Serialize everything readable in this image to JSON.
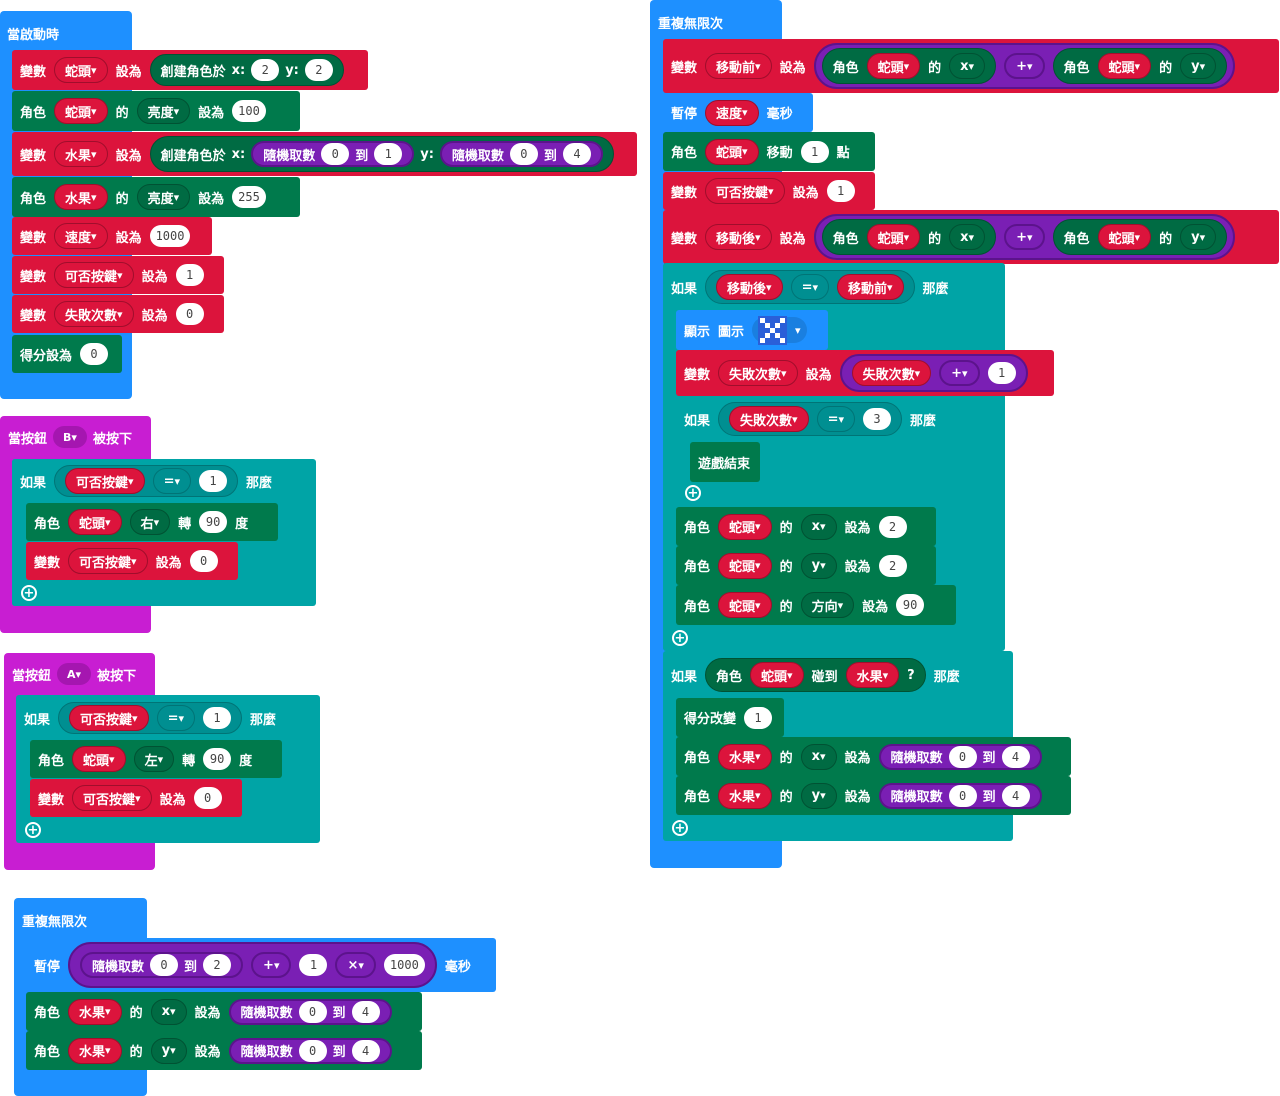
{
  "on_start": {
    "title": "當啟動時",
    "r1": {
      "var": "變數",
      "name": "蛇頭",
      "set": "設為",
      "create": "創建角色於",
      "x_lbl": "x:",
      "x": "2",
      "y_lbl": "y:",
      "y": "2"
    },
    "r2": {
      "sprite": "角色",
      "name": "蛇頭",
      "of": "的",
      "prop": "亮度",
      "set": "設為",
      "val": "100"
    },
    "r3": {
      "var": "變數",
      "name": "水果",
      "set": "設為",
      "create": "創建角色於",
      "x_lbl": "x:",
      "rand1": "隨機取數",
      "a1": "0",
      "to1": "到",
      "b1": "1",
      "y_lbl": "y:",
      "rand2": "隨機取數",
      "a2": "0",
      "to2": "到",
      "b2": "4"
    },
    "r4": {
      "sprite": "角色",
      "name": "水果",
      "of": "的",
      "prop": "亮度",
      "set": "設為",
      "val": "255"
    },
    "r5": {
      "var": "變數",
      "name": "速度",
      "set": "設為",
      "val": "1000"
    },
    "r6": {
      "var": "變數",
      "name": "可否按鍵",
      "set": "設為",
      "val": "1"
    },
    "r7": {
      "var": "變數",
      "name": "失敗次數",
      "set": "設為",
      "val": "0"
    },
    "r8": {
      "label": "得分設為",
      "val": "0"
    }
  },
  "btn_b": {
    "title_pre": "當按鈕",
    "btn": "B",
    "title_post": "被按下",
    "if": "如果",
    "cond_var": "可否按鍵",
    "op": "=",
    "cond_val": "1",
    "then": "那麼",
    "r1": {
      "sprite": "角色",
      "name": "蛇頭",
      "dir": "右",
      "turn": "轉",
      "deg": "90",
      "unit": "度"
    },
    "r2": {
      "var": "變數",
      "name": "可否按鍵",
      "set": "設為",
      "val": "0"
    }
  },
  "btn_a": {
    "title_pre": "當按鈕",
    "btn": "A",
    "title_post": "被按下",
    "if": "如果",
    "cond_var": "可否按鍵",
    "op": "=",
    "cond_val": "1",
    "then": "那麼",
    "r1": {
      "sprite": "角色",
      "name": "蛇頭",
      "dir": "左",
      "turn": "轉",
      "deg": "90",
      "unit": "度"
    },
    "r2": {
      "var": "變數",
      "name": "可否按鍵",
      "set": "設為",
      "val": "0"
    }
  },
  "forever2": {
    "title": "重複無限次",
    "pause": "暫停",
    "rand": "隨機取數",
    "a": "0",
    "to": "到",
    "b": "2",
    "plus": "+",
    "c": "1",
    "mul": "×",
    "d": "1000",
    "ms": "毫秒",
    "r1": {
      "sprite": "角色",
      "name": "水果",
      "of": "的",
      "prop": "x",
      "set": "設為",
      "rand": "隨機取數",
      "a": "0",
      "to": "到",
      "b": "4"
    },
    "r2": {
      "sprite": "角色",
      "name": "水果",
      "of": "的",
      "prop": "y",
      "set": "設為",
      "rand": "隨機取數",
      "a": "0",
      "to": "到",
      "b": "4"
    }
  },
  "forever1": {
    "title": "重複無限次",
    "r1": {
      "var": "變數",
      "name": "移動前",
      "set": "設為",
      "sprite": "角色",
      "s1": "蛇頭",
      "of": "的",
      "p1": "x",
      "plus": "+",
      "s2": "蛇頭",
      "p2": "y"
    },
    "r2": {
      "pause": "暫停",
      "name": "速度",
      "ms": "毫秒"
    },
    "r3": {
      "sprite": "角色",
      "name": "蛇頭",
      "move": "移動",
      "val": "1",
      "unit": "點"
    },
    "r4": {
      "var": "變數",
      "name": "可否按鍵",
      "set": "設為",
      "val": "1"
    },
    "r5": {
      "var": "變數",
      "name": "移動後",
      "set": "設為",
      "sprite": "角色",
      "s1": "蛇頭",
      "of": "的",
      "p1": "x",
      "plus": "+",
      "s2": "蛇頭",
      "p2": "y"
    },
    "if1": {
      "if": "如果",
      "a": "移動後",
      "op": "=",
      "b": "移動前",
      "then": "那麼"
    },
    "show": {
      "label": "顯示",
      "icon": "圖示"
    },
    "r6": {
      "var": "變數",
      "name": "失敗次數",
      "set": "設為",
      "a": "失敗次數",
      "plus": "+",
      "b": "1"
    },
    "if2": {
      "if": "如果",
      "a": "失敗次數",
      "op": "=",
      "b": "3",
      "then": "那麼"
    },
    "gameover": "遊戲結束",
    "r7": {
      "sprite": "角色",
      "name": "蛇頭",
      "of": "的",
      "prop": "x",
      "set": "設為",
      "val": "2"
    },
    "r8": {
      "sprite": "角色",
      "name": "蛇頭",
      "of": "的",
      "prop": "y",
      "set": "設為",
      "val": "2"
    },
    "r9": {
      "sprite": "角色",
      "name": "蛇頭",
      "of": "的",
      "prop": "方向",
      "set": "設為",
      "val": "90"
    },
    "if3": {
      "if": "如果",
      "sprite": "角色",
      "a": "蛇頭",
      "touch": "碰到",
      "b": "水果",
      "q": "?",
      "then": "那麼"
    },
    "score": {
      "label": "得分改變",
      "val": "1"
    },
    "r10": {
      "sprite": "角色",
      "name": "水果",
      "of": "的",
      "prop": "x",
      "set": "設為",
      "rand": "隨機取數",
      "a": "0",
      "to": "到",
      "b": "4"
    },
    "r11": {
      "sprite": "角色",
      "name": "水果",
      "of": "的",
      "prop": "y",
      "set": "設為",
      "rand": "隨機取數",
      "a": "0",
      "to": "到",
      "b": "4"
    }
  }
}
